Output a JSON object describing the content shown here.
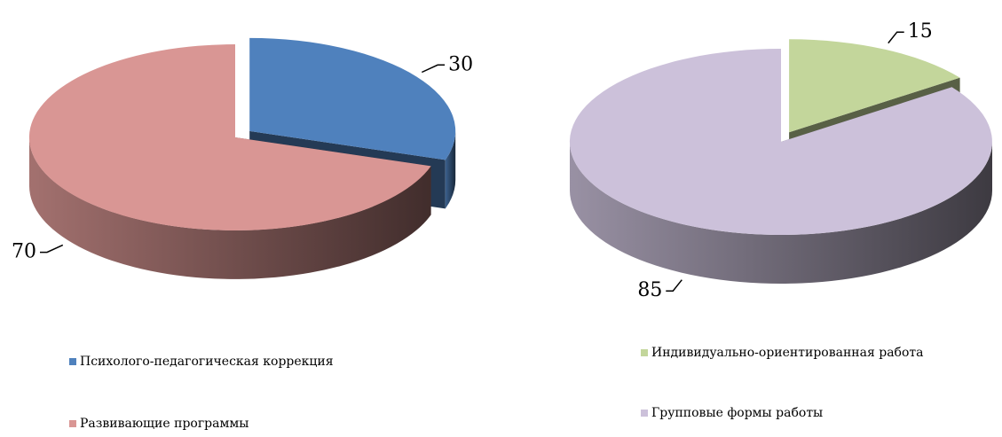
{
  "chart_data": [
    {
      "type": "pie",
      "categories": [
        "Психолого-педагогическая коррекция",
        "Развивающие программы"
      ],
      "values": [
        30,
        70
      ],
      "colors": [
        "#4f81bd",
        "#d99694"
      ]
    },
    {
      "type": "pie",
      "categories": [
        "Индивидуально-ориентированная работа",
        "Групповые формы работы"
      ],
      "values": [
        15,
        85
      ],
      "colors": [
        "#c3d69b",
        "#ccc1da"
      ]
    }
  ]
}
